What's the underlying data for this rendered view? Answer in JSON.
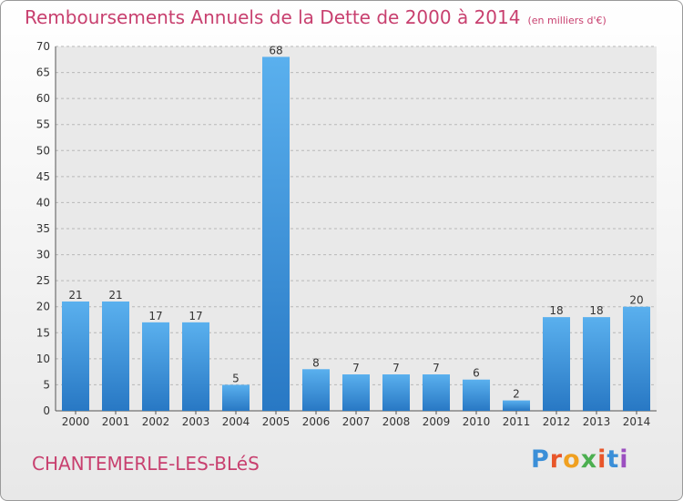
{
  "chart_data": {
    "type": "bar",
    "title": "Remboursements Annuels de la Dette de 2000 à 2014",
    "unit": "(en milliers d'€)",
    "categories": [
      "2000",
      "2001",
      "2002",
      "2003",
      "2004",
      "2005",
      "2006",
      "2007",
      "2008",
      "2009",
      "2010",
      "2011",
      "2012",
      "2013",
      "2014"
    ],
    "values": [
      21,
      21,
      17,
      17,
      5,
      68,
      8,
      7,
      7,
      7,
      6,
      2,
      18,
      18,
      20
    ],
    "ylim": [
      0,
      70
    ],
    "yticks": [
      0,
      5,
      10,
      15,
      20,
      25,
      30,
      35,
      40,
      45,
      50,
      55,
      60,
      65,
      70
    ],
    "grid": true,
    "bar_color": "#3f97de"
  },
  "footer": {
    "commune": "CHANTEMERLE-LES-BLéS",
    "brand": "Proxiti",
    "brand_colors": [
      "#3b8fd8",
      "#e8562a",
      "#f0a020",
      "#4caf50",
      "#e8562a",
      "#3b8fd8",
      "#9c4fc0"
    ]
  }
}
